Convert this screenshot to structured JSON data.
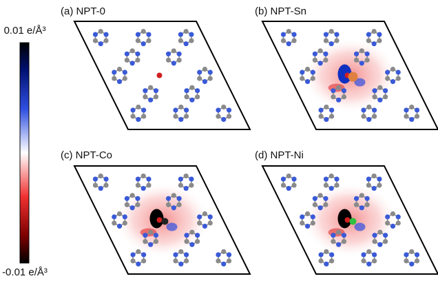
{
  "colorbar": {
    "max_label": "0.01 e/Å³",
    "min_label": "-0.01 e/Å³"
  },
  "panels": [
    {
      "label": "(a) NPT-0"
    },
    {
      "label": "(b) NPT-Sn"
    },
    {
      "label": "(c) NPT-Co"
    },
    {
      "label": "(d) NPT-Ni"
    }
  ]
}
